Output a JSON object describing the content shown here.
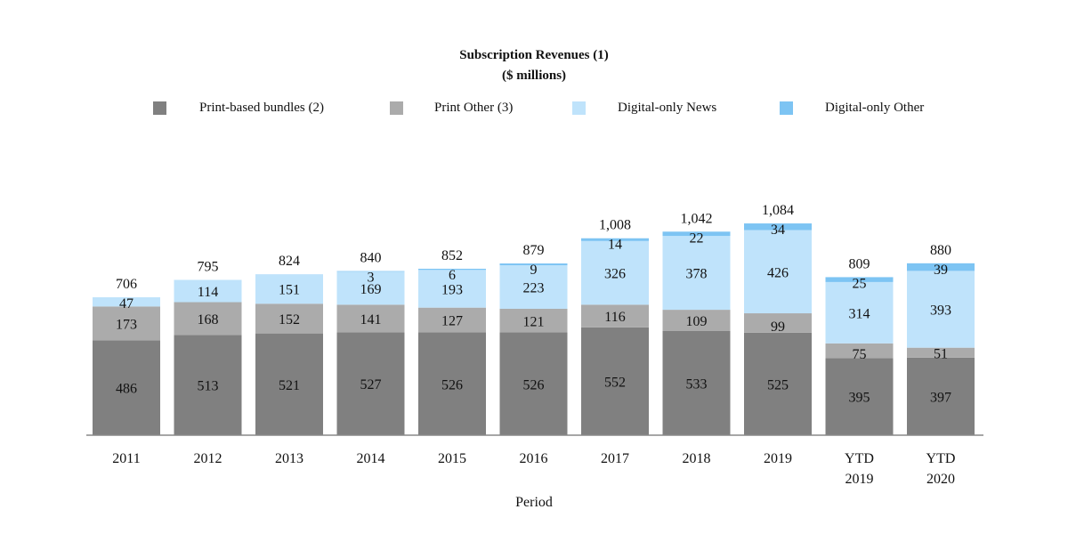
{
  "chart_data": {
    "type": "bar",
    "stacked": true,
    "title": "Subscription Revenues (1)",
    "subtitle": "($ millions)",
    "xlabel": "Period",
    "ylabel": "",
    "legend_position": "top",
    "grid": false,
    "categories": [
      "2011",
      "2012",
      "2013",
      "2014",
      "2015",
      "2016",
      "2017",
      "2018",
      "2019",
      "YTD 2019",
      "YTD 2020"
    ],
    "totals": [
      "706",
      "795",
      "824",
      "840",
      "852",
      "879",
      "1,008",
      "1,042",
      "1,084",
      "809",
      "880"
    ],
    "series": [
      {
        "name": "Print-based bundles (2)",
        "color": "#808080",
        "values": [
          486,
          513,
          521,
          527,
          526,
          526,
          552,
          533,
          525,
          395,
          397
        ]
      },
      {
        "name": "Print Other (3)",
        "color": "#ababab",
        "values": [
          173,
          168,
          152,
          141,
          127,
          121,
          116,
          109,
          99,
          75,
          51
        ]
      },
      {
        "name": "Digital-only News",
        "color": "#bfe3fb",
        "values": [
          47,
          114,
          151,
          169,
          193,
          223,
          326,
          378,
          426,
          314,
          393
        ]
      },
      {
        "name": "Digital-only Other",
        "color": "#7dc4f3",
        "values": [
          null,
          null,
          null,
          3,
          6,
          9,
          14,
          22,
          34,
          25,
          39
        ]
      }
    ]
  }
}
